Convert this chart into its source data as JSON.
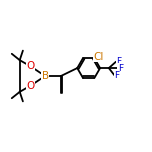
{
  "bg_color": "#ffffff",
  "line_color": "#000000",
  "bond_lw": 1.3,
  "atom_colors": {
    "B": "#cc7700",
    "O": "#dd0000",
    "Cl": "#cc7700",
    "F": "#0000cc"
  },
  "font_size_atom": 7.5,
  "font_size_f": 6.5,
  "xlim": [
    0.0,
    9.5
  ],
  "ylim": [
    2.5,
    8.5
  ]
}
